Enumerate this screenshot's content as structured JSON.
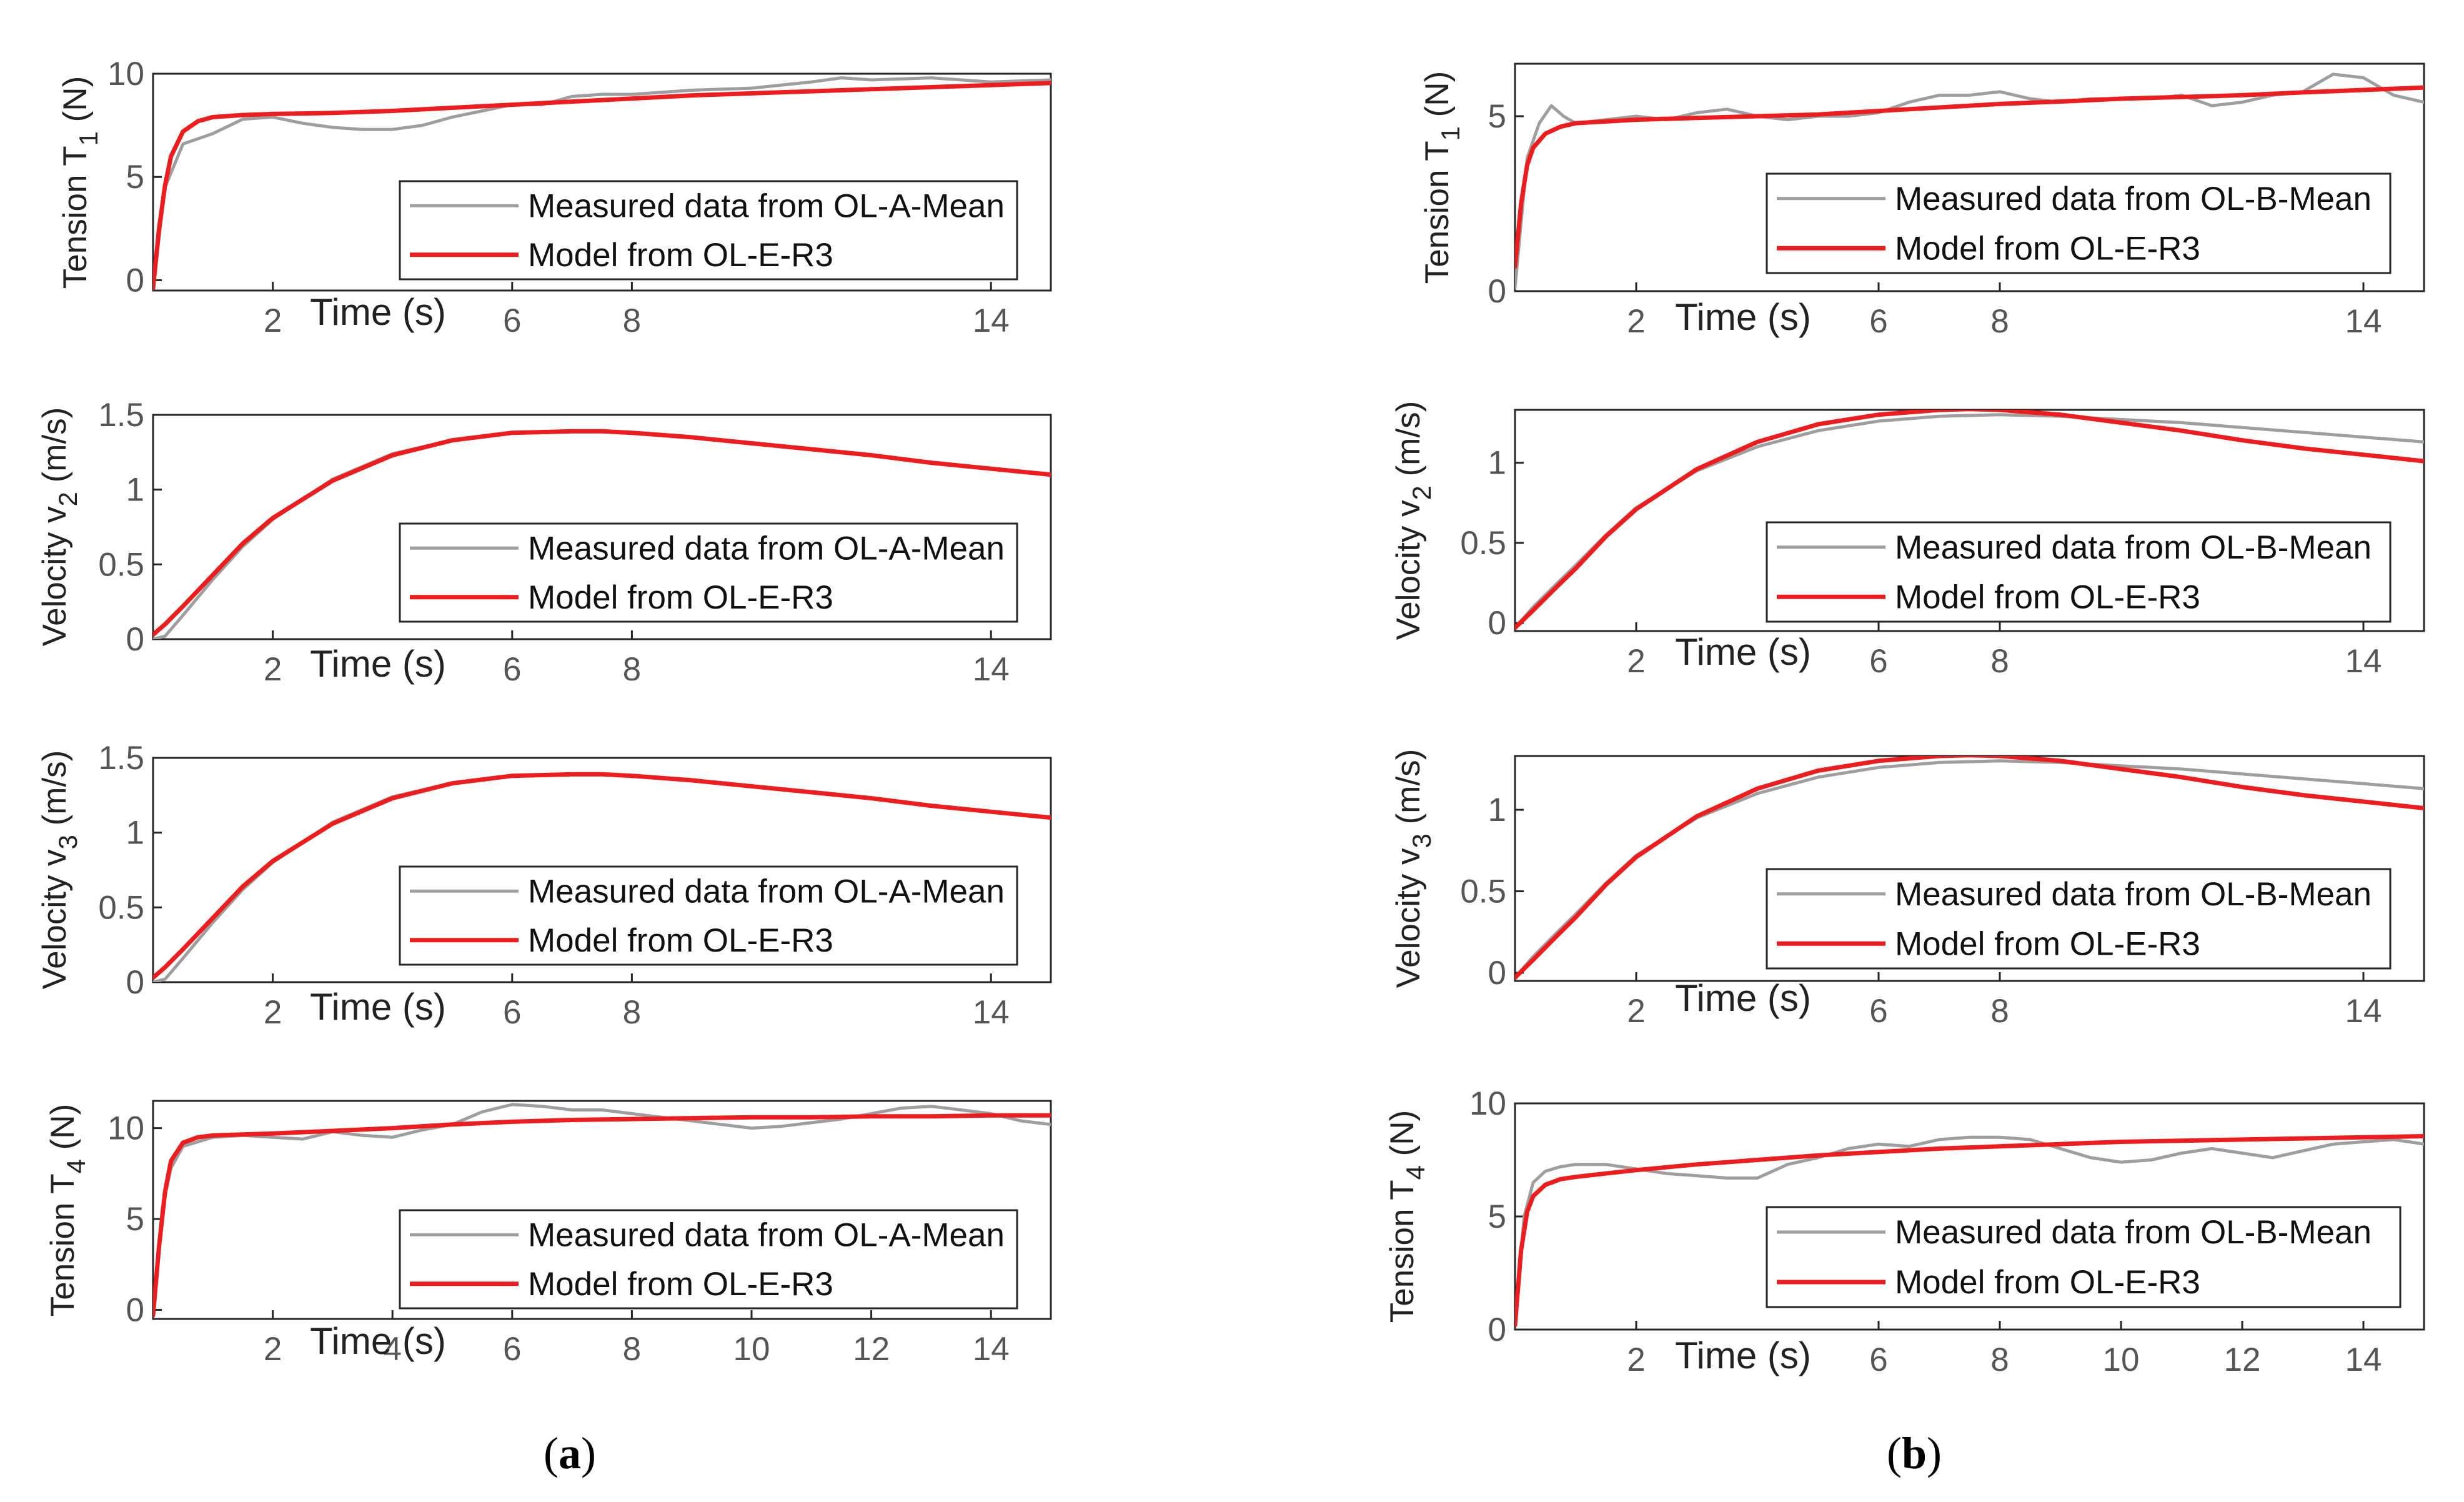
{
  "figure": {
    "panel_labels": [
      {
        "open": "(",
        "letter": "a",
        "close": ")"
      },
      {
        "open": "(",
        "letter": "b",
        "close": ")"
      }
    ],
    "colors": {
      "measured": "#9e9e9e",
      "model": "#ee1c1c",
      "axes": "#262626",
      "grid": "#e3e3e3"
    }
  },
  "chart_data": [
    {
      "id": "a1",
      "type": "line",
      "ylabel": "Tension T",
      "ylabel_sub": "1",
      "ylabel_unit": " (N)",
      "xlabel": "Time (s)",
      "xlim": [
        0,
        15
      ],
      "ylim": [
        -0.5,
        10
      ],
      "xticks": [
        2,
        6,
        8,
        14
      ],
      "yticks": [
        0,
        5,
        10
      ],
      "legend": [
        "Measured data from OL-A-Mean",
        "Model from OL-E-R3"
      ],
      "series": [
        {
          "name": "Measured data from OL-A-Mean",
          "x": [
            0,
            0.2,
            0.5,
            1,
            1.5,
            2,
            2.5,
            3,
            3.5,
            4,
            4.5,
            5,
            5.5,
            6,
            6.5,
            7,
            7.5,
            8,
            8.5,
            9,
            10,
            11,
            11.5,
            12,
            13,
            14,
            15
          ],
          "y": [
            -0.4,
            4.5,
            6.6,
            7.1,
            7.8,
            7.9,
            7.6,
            7.4,
            7.3,
            7.3,
            7.5,
            7.9,
            8.2,
            8.5,
            8.5,
            8.9,
            9.0,
            9.0,
            9.1,
            9.2,
            9.3,
            9.6,
            9.8,
            9.7,
            9.8,
            9.6,
            9.7
          ]
        },
        {
          "name": "Model from OL-E-R3",
          "x": [
            0,
            0.1,
            0.2,
            0.3,
            0.5,
            0.75,
            1,
            1.5,
            2,
            3,
            4,
            5,
            6,
            7,
            8,
            9,
            10,
            11,
            12,
            13,
            14,
            15
          ],
          "y": [
            -0.4,
            2.5,
            4.6,
            6.0,
            7.2,
            7.7,
            7.9,
            8.0,
            8.05,
            8.1,
            8.2,
            8.35,
            8.5,
            8.65,
            8.8,
            8.95,
            9.05,
            9.15,
            9.25,
            9.35,
            9.45,
            9.55
          ]
        }
      ]
    },
    {
      "id": "a2",
      "type": "line",
      "ylabel": "Velocity v",
      "ylabel_sub": "2",
      "ylabel_unit": " (m/s)",
      "xlabel": "Time (s)",
      "xlim": [
        0,
        15
      ],
      "ylim": [
        0,
        1.5
      ],
      "xticks": [
        2,
        6,
        8,
        14
      ],
      "yticks": [
        0,
        0.5,
        1,
        1.5
      ],
      "legend": [
        "Measured data from OL-A-Mean",
        "Model from OL-E-R3"
      ],
      "series": [
        {
          "name": "Measured data from OL-A-Mean",
          "x": [
            0,
            0.2,
            0.5,
            1,
            1.5,
            2,
            3,
            4,
            5,
            6,
            7,
            7.5,
            8,
            9,
            10,
            11,
            12,
            13,
            14,
            15
          ],
          "y": [
            0,
            0.02,
            0.16,
            0.4,
            0.62,
            0.8,
            1.07,
            1.24,
            1.33,
            1.38,
            1.39,
            1.39,
            1.38,
            1.35,
            1.31,
            1.27,
            1.23,
            1.18,
            1.14,
            1.1
          ]
        },
        {
          "name": "Model from OL-E-R3",
          "x": [
            0,
            0.2,
            0.5,
            1,
            1.5,
            2,
            3,
            4,
            5,
            6,
            7,
            7.5,
            8,
            9,
            10,
            11,
            12,
            13,
            14,
            15
          ],
          "y": [
            0.03,
            0.1,
            0.22,
            0.43,
            0.64,
            0.81,
            1.06,
            1.23,
            1.33,
            1.38,
            1.39,
            1.39,
            1.38,
            1.35,
            1.31,
            1.27,
            1.23,
            1.18,
            1.14,
            1.1
          ]
        }
      ]
    },
    {
      "id": "a3",
      "type": "line",
      "ylabel": "Velocity v",
      "ylabel_sub": "3",
      "ylabel_unit": " (m/s)",
      "xlabel": "Time (s)",
      "xlim": [
        0,
        15
      ],
      "ylim": [
        0,
        1.5
      ],
      "xticks": [
        2,
        6,
        8,
        14
      ],
      "yticks": [
        0,
        0.5,
        1,
        1.5
      ],
      "legend": [
        "Measured data from OL-A-Mean",
        "Model from OL-E-R3"
      ],
      "series": [
        {
          "name": "Measured data from OL-A-Mean",
          "x": [
            0,
            0.2,
            0.5,
            1,
            1.5,
            2,
            3,
            4,
            5,
            6,
            7,
            7.5,
            8,
            9,
            10,
            11,
            12,
            13,
            14,
            15
          ],
          "y": [
            0,
            0.02,
            0.16,
            0.4,
            0.62,
            0.8,
            1.07,
            1.24,
            1.33,
            1.38,
            1.39,
            1.39,
            1.38,
            1.35,
            1.31,
            1.27,
            1.23,
            1.18,
            1.14,
            1.1
          ]
        },
        {
          "name": "Model from OL-E-R3",
          "x": [
            0,
            0.2,
            0.5,
            1,
            1.5,
            2,
            3,
            4,
            5,
            6,
            7,
            7.5,
            8,
            9,
            10,
            11,
            12,
            13,
            14,
            15
          ],
          "y": [
            0.03,
            0.1,
            0.22,
            0.43,
            0.64,
            0.81,
            1.06,
            1.23,
            1.33,
            1.38,
            1.39,
            1.39,
            1.38,
            1.35,
            1.31,
            1.27,
            1.23,
            1.18,
            1.14,
            1.1
          ]
        }
      ]
    },
    {
      "id": "a4",
      "type": "line",
      "ylabel": "Tension T",
      "ylabel_sub": "4",
      "ylabel_unit": " (N)",
      "xlabel": "Time (s)",
      "xlim": [
        0,
        15
      ],
      "ylim": [
        -0.5,
        11.5
      ],
      "xticks": [
        2,
        4,
        6,
        8,
        10,
        12,
        14
      ],
      "yticks": [
        0,
        5,
        10
      ],
      "legend": [
        "Measured data from OL-A-Mean",
        "Model from OL-E-R3"
      ],
      "series": [
        {
          "name": "Measured data from OL-A-Mean",
          "x": [
            0,
            0.15,
            0.3,
            0.5,
            1,
            1.5,
            2,
            2.5,
            3,
            3.5,
            4,
            4.5,
            5,
            5.5,
            6,
            6.5,
            7,
            7.5,
            8,
            8.5,
            9,
            9.5,
            10,
            10.5,
            11,
            11.5,
            12,
            12.5,
            13,
            13.5,
            14,
            14.5,
            15
          ],
          "y": [
            -0.3,
            5.5,
            7.8,
            9.0,
            9.5,
            9.6,
            9.5,
            9.4,
            9.8,
            9.6,
            9.5,
            9.9,
            10.2,
            10.9,
            11.3,
            11.2,
            11.0,
            11.0,
            10.8,
            10.6,
            10.4,
            10.2,
            10.0,
            10.1,
            10.3,
            10.5,
            10.8,
            11.1,
            11.2,
            11.0,
            10.8,
            10.4,
            10.2
          ]
        },
        {
          "name": "Model from OL-E-R3",
          "x": [
            0,
            0.1,
            0.2,
            0.3,
            0.5,
            0.75,
            1,
            1.5,
            2,
            3,
            4,
            5,
            6,
            7,
            8,
            9,
            10,
            11,
            12,
            13,
            14,
            15
          ],
          "y": [
            -0.3,
            3.5,
            6.5,
            8.2,
            9.2,
            9.5,
            9.6,
            9.65,
            9.7,
            9.85,
            10.0,
            10.2,
            10.35,
            10.45,
            10.5,
            10.55,
            10.6,
            10.6,
            10.65,
            10.65,
            10.7,
            10.7
          ]
        }
      ]
    },
    {
      "id": "b1",
      "type": "line",
      "ylabel": "Tension T",
      "ylabel_sub": "1",
      "ylabel_unit": " (N)",
      "xlabel": "Time (s)",
      "xlim": [
        0,
        15
      ],
      "ylim": [
        0,
        6.5
      ],
      "xticks": [
        2,
        6,
        8,
        14
      ],
      "yticks": [
        0,
        5
      ],
      "legend": [
        "Measured data from OL-B-Mean",
        "Model from OL-E-R3"
      ],
      "series": [
        {
          "name": "Measured data from OL-B-Mean",
          "x": [
            0,
            0.2,
            0.4,
            0.6,
            0.8,
            1,
            1.5,
            2,
            2.5,
            3,
            3.5,
            4,
            4.5,
            5,
            5.5,
            6,
            6.5,
            7,
            7.5,
            8,
            8.5,
            9,
            9.5,
            10,
            10.5,
            11,
            11.5,
            12,
            12.5,
            13,
            13.5,
            14,
            14.5,
            15
          ],
          "y": [
            0.1,
            3.8,
            4.8,
            5.3,
            5.0,
            4.8,
            4.9,
            5.0,
            4.9,
            5.1,
            5.2,
            5.0,
            4.9,
            5.0,
            5.0,
            5.1,
            5.4,
            5.6,
            5.6,
            5.7,
            5.5,
            5.4,
            5.5,
            5.5,
            5.5,
            5.6,
            5.3,
            5.4,
            5.6,
            5.7,
            6.2,
            6.1,
            5.6,
            5.4
          ]
        },
        {
          "name": "Model from OL-E-R3",
          "x": [
            0,
            0.1,
            0.2,
            0.3,
            0.5,
            0.75,
            1,
            1.5,
            2,
            3,
            4,
            5,
            6,
            7,
            8,
            9,
            10,
            11,
            12,
            13,
            14,
            15
          ],
          "y": [
            0.7,
            2.5,
            3.6,
            4.1,
            4.5,
            4.7,
            4.8,
            4.85,
            4.9,
            4.95,
            5.0,
            5.05,
            5.15,
            5.25,
            5.35,
            5.42,
            5.5,
            5.55,
            5.6,
            5.68,
            5.75,
            5.82
          ]
        }
      ]
    },
    {
      "id": "b2",
      "type": "line",
      "ylabel": "Velocity v",
      "ylabel_sub": "2",
      "ylabel_unit": " (m/s)",
      "xlabel": "Time (s)",
      "xlim": [
        0,
        15
      ],
      "ylim": [
        -0.05,
        1.33
      ],
      "xticks": [
        2,
        6,
        8,
        14
      ],
      "yticks": [
        0,
        0.5,
        1
      ],
      "legend": [
        "Measured data from OL-B-Mean",
        "Model from OL-E-R3"
      ],
      "series": [
        {
          "name": "Measured data from OL-B-Mean",
          "x": [
            0,
            0.3,
            0.7,
            1,
            1.5,
            2,
            3,
            4,
            5,
            6,
            7,
            8,
            9,
            10,
            11,
            12,
            13,
            14,
            15
          ],
          "y": [
            -0.03,
            0.1,
            0.25,
            0.36,
            0.55,
            0.72,
            0.95,
            1.1,
            1.2,
            1.26,
            1.29,
            1.3,
            1.29,
            1.27,
            1.25,
            1.22,
            1.19,
            1.16,
            1.13
          ]
        },
        {
          "name": "Model from OL-E-R3",
          "x": [
            0,
            0.3,
            0.7,
            1,
            1.5,
            2,
            3,
            4,
            5,
            6,
            7,
            7.5,
            8,
            9,
            10,
            11,
            12,
            13,
            14,
            15
          ],
          "y": [
            -0.03,
            0.08,
            0.23,
            0.34,
            0.54,
            0.71,
            0.96,
            1.13,
            1.24,
            1.3,
            1.33,
            1.335,
            1.33,
            1.3,
            1.25,
            1.2,
            1.14,
            1.09,
            1.05,
            1.01
          ]
        }
      ]
    },
    {
      "id": "b3",
      "type": "line",
      "ylabel": "Velocity v",
      "ylabel_sub": "3",
      "ylabel_unit": " (m/s)",
      "xlabel": "Time (s)",
      "xlim": [
        0,
        15
      ],
      "ylim": [
        -0.05,
        1.33
      ],
      "xticks": [
        2,
        6,
        8,
        14
      ],
      "yticks": [
        0,
        0.5,
        1
      ],
      "legend": [
        "Measured data from OL-B-Mean",
        "Model from OL-E-R3"
      ],
      "series": [
        {
          "name": "Measured data from OL-B-Mean",
          "x": [
            0,
            0.3,
            0.7,
            1,
            1.5,
            2,
            3,
            4,
            5,
            6,
            7,
            8,
            9,
            10,
            11,
            12,
            13,
            14,
            15
          ],
          "y": [
            -0.03,
            0.1,
            0.25,
            0.36,
            0.55,
            0.72,
            0.95,
            1.1,
            1.2,
            1.26,
            1.29,
            1.3,
            1.29,
            1.27,
            1.25,
            1.22,
            1.19,
            1.16,
            1.13
          ]
        },
        {
          "name": "Model from OL-E-R3",
          "x": [
            0,
            0.3,
            0.7,
            1,
            1.5,
            2,
            3,
            4,
            5,
            6,
            7,
            7.5,
            8,
            9,
            10,
            11,
            12,
            13,
            14,
            15
          ],
          "y": [
            -0.03,
            0.08,
            0.23,
            0.34,
            0.54,
            0.71,
            0.96,
            1.13,
            1.24,
            1.3,
            1.33,
            1.335,
            1.33,
            1.3,
            1.25,
            1.2,
            1.14,
            1.09,
            1.05,
            1.01
          ]
        }
      ]
    },
    {
      "id": "b4",
      "type": "line",
      "ylabel": "Tension T",
      "ylabel_sub": "4",
      "ylabel_unit": " (N)",
      "xlabel": "Time (s)",
      "xlim": [
        0,
        15
      ],
      "ylim": [
        0,
        10
      ],
      "xticks": [
        2,
        6,
        8,
        10,
        12,
        14
      ],
      "yticks": [
        0,
        5,
        10
      ],
      "legend": [
        "Measured data from OL-B-Mean",
        "Model from OL-E-R3"
      ],
      "series": [
        {
          "name": "Measured data from OL-B-Mean",
          "x": [
            0,
            0.15,
            0.3,
            0.5,
            0.75,
            1,
            1.5,
            2,
            2.5,
            3,
            3.5,
            4,
            4.5,
            5,
            5.5,
            6,
            6.5,
            7,
            7.5,
            8,
            8.5,
            9,
            9.5,
            10,
            10.5,
            11,
            11.5,
            12,
            12.5,
            13,
            13.5,
            14,
            14.5,
            15
          ],
          "y": [
            0.2,
            5.0,
            6.5,
            7.0,
            7.2,
            7.3,
            7.3,
            7.1,
            6.9,
            6.8,
            6.7,
            6.7,
            7.3,
            7.6,
            8.0,
            8.2,
            8.1,
            8.4,
            8.5,
            8.5,
            8.4,
            8.0,
            7.6,
            7.4,
            7.5,
            7.8,
            8.0,
            7.8,
            7.6,
            7.9,
            8.2,
            8.3,
            8.4,
            8.2
          ]
        },
        {
          "name": "Model from OL-E-R3",
          "x": [
            0,
            0.1,
            0.2,
            0.3,
            0.5,
            0.75,
            1,
            1.5,
            2,
            3,
            4,
            5,
            6,
            7,
            8,
            9,
            10,
            11,
            12,
            13,
            14,
            15
          ],
          "y": [
            0.2,
            3.5,
            5.2,
            5.9,
            6.4,
            6.65,
            6.75,
            6.9,
            7.05,
            7.3,
            7.5,
            7.7,
            7.85,
            8.0,
            8.1,
            8.2,
            8.3,
            8.35,
            8.4,
            8.45,
            8.5,
            8.55
          ]
        }
      ]
    }
  ]
}
